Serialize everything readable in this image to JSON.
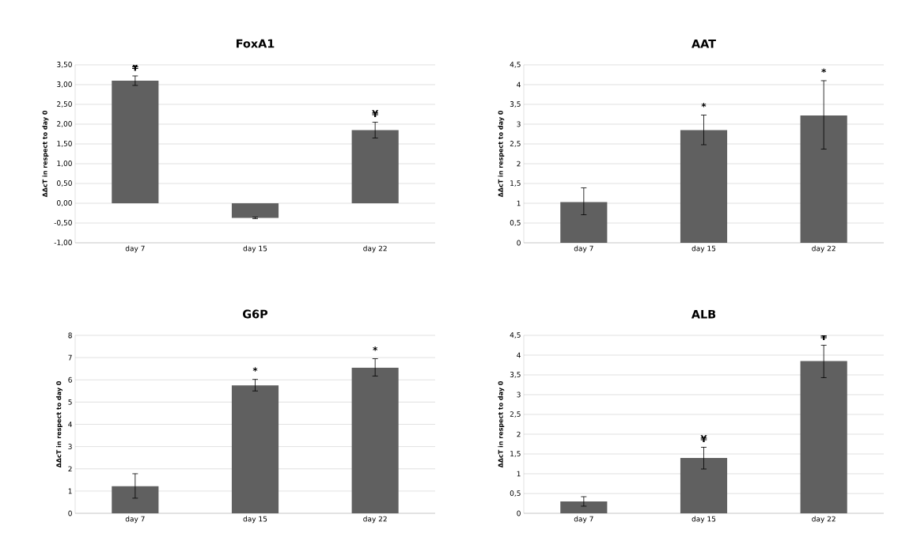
{
  "chart_data": [
    {
      "type": "bar",
      "title": "FoxA1",
      "ylabel": "ΔΔcT in respect to day 0",
      "categories": [
        "day 7",
        "day 15",
        "day 22"
      ],
      "values": [
        3.1,
        -0.37,
        1.85
      ],
      "errors": [
        [
          2.98,
          3.22
        ],
        [
          -0.39,
          -0.35
        ],
        [
          1.65,
          2.05
        ]
      ],
      "color": "#606060",
      "ylim": [
        -1,
        3.5
      ],
      "yticks": [
        {
          "value": -1,
          "label": "-1,00"
        },
        {
          "value": -0.5,
          "label": "-0,50"
        },
        {
          "value": 0,
          "label": "0,00"
        },
        {
          "value": 0.5,
          "label": "0,50"
        },
        {
          "value": 1,
          "label": "1,00"
        },
        {
          "value": 1.5,
          "label": "1,50"
        },
        {
          "value": 2,
          "label": "2,00"
        },
        {
          "value": 2.5,
          "label": "2,50"
        },
        {
          "value": 3,
          "label": "3,00"
        },
        {
          "value": 3.5,
          "label": "3,50"
        }
      ],
      "grid": "y",
      "annotations": [
        {
          "text": "¥",
          "x": "day 7",
          "y": 3.1
        },
        {
          "text": "¥",
          "x": "day 22",
          "y": 1.85
        }
      ]
    },
    {
      "type": "bar",
      "title": "AAT",
      "ylabel": "ΔΔcT in respect to day 0",
      "categories": [
        "day 7",
        "day 15",
        "day 22"
      ],
      "values": [
        1.03,
        2.85,
        3.22
      ],
      "errors": [
        [
          0.71,
          1.39
        ],
        [
          2.48,
          3.23
        ],
        [
          2.37,
          4.1
        ]
      ],
      "color": "#606060",
      "ylim": [
        0,
        4.5
      ],
      "yticks": [
        0,
        {
          "value": 0.5,
          "label": "0,5"
        },
        1,
        {
          "value": 1.5,
          "label": "1,5"
        },
        2,
        {
          "value": 2.5,
          "label": "2,5"
        },
        3,
        {
          "value": 3.5,
          "label": "3,5"
        },
        4,
        {
          "value": 4.5,
          "label": "4,5"
        }
      ],
      "grid": "y",
      "annotations": [
        {
          "text": "*",
          "x": "day 15",
          "y": 2.85
        },
        {
          "text": "*",
          "x": "day 22",
          "y": 4.1
        }
      ]
    },
    {
      "type": "bar",
      "title": "G6P",
      "ylabel": "ΔΔcT in respect to day 0",
      "categories": [
        "day 7",
        "day 15",
        "day 22"
      ],
      "values": [
        1.22,
        5.75,
        6.55
      ],
      "errors": [
        [
          0.68,
          1.78
        ],
        [
          5.5,
          6.02
        ],
        [
          6.17,
          6.95
        ]
      ],
      "color": "#606060",
      "ylim": [
        0,
        8
      ],
      "yticks": [
        0,
        1,
        2,
        3,
        4,
        5,
        6,
        7,
        8
      ],
      "grid": "y",
      "annotations": [
        {
          "text": "*",
          "x": "day 15",
          "y": 5.75
        },
        {
          "text": "*",
          "x": "day 22",
          "y": 6.55
        }
      ]
    },
    {
      "type": "bar",
      "title": "ALB",
      "ylabel": "ΔΔcT in respect to day 0",
      "categories": [
        "day 7",
        "day 15",
        "day 22"
      ],
      "values": [
        0.3,
        1.4,
        3.85
      ],
      "errors": [
        [
          0.18,
          0.42
        ],
        [
          1.12,
          1.67
        ],
        [
          3.43,
          4.25
        ]
      ],
      "color": "#606060",
      "ylim": [
        0,
        4.5
      ],
      "yticks": [
        0,
        {
          "value": 0.5,
          "label": "0,5"
        },
        1,
        {
          "value": 1.5,
          "label": "1,5"
        },
        2,
        {
          "value": 2.5,
          "label": "2,5"
        },
        3,
        {
          "value": 3.5,
          "label": "3,5"
        },
        4,
        {
          "value": 4.5,
          "label": "4,5"
        }
      ],
      "grid": "y",
      "annotations": [
        {
          "text": "¥",
          "x": "day 15",
          "y": 1.4
        },
        {
          "text": "¥",
          "x": "day 22",
          "y": 3.85
        }
      ]
    }
  ]
}
